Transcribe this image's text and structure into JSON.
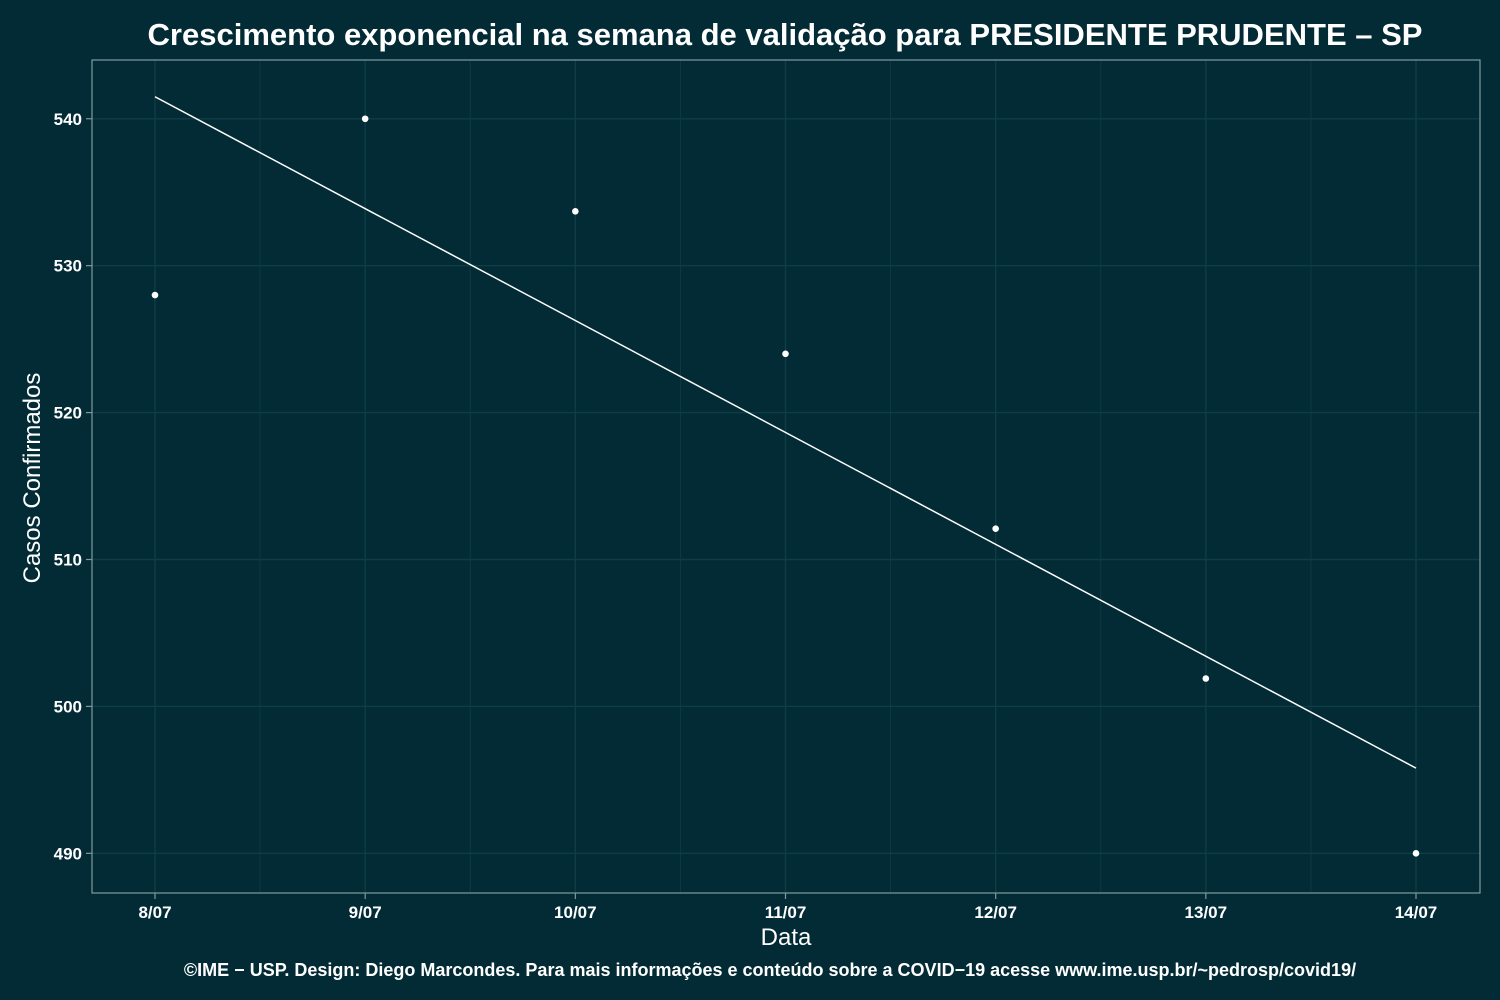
{
  "chart_data": {
    "type": "scatter",
    "title": "Crescimento exponencial na semana de validação para PRESIDENTE PRUDENTE – SP",
    "xlabel": "Data",
    "ylabel": "Casos Confirmados",
    "caption": "©IME − USP. Design: Diego Marcondes. Para mais informações e conteúdo sobre a COVID−19 acesse www.ime.usp.br/~pedrosp/covid19/",
    "categories": [
      "8/07",
      "9/07",
      "10/07",
      "11/07",
      "12/07",
      "13/07",
      "14/07"
    ],
    "yticks": [
      490,
      500,
      510,
      520,
      530,
      540
    ],
    "ylim": [
      487.3,
      544.0
    ],
    "grid": true,
    "points": [
      528,
      540,
      533.7,
      524,
      512.1,
      501.9,
      490
    ],
    "fit_line": {
      "start": 541.5,
      "end": 495.8
    },
    "colors": {
      "background": "#022b35",
      "gridline": "#0f3d46",
      "axis": "#7f9aa0",
      "points": "#ffffff",
      "line": "#ffffff",
      "text": "#ffffff"
    }
  }
}
